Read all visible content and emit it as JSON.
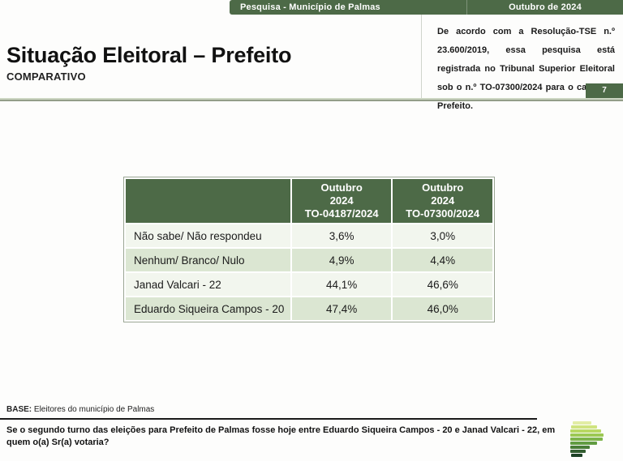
{
  "top_bar": {
    "left_label": "Pesquisa - Município de Palmas",
    "right_label": "Outubro de 2024"
  },
  "header": {
    "title": "Situação Eleitoral – Prefeito",
    "subtitle": "COMPARATIVO"
  },
  "registration_note": "De acordo com a Resolução-TSE n.º 23.600/2019, essa pesquisa está registrada no Tribunal Superior Eleitoral sob o n.º TO-07300/2024 para o cargo de Prefeito.",
  "page_number": "7",
  "table": {
    "header": {
      "col1": "",
      "col2": {
        "line1": "Outubro",
        "line2": "2024",
        "line3": "TO-04187/2024"
      },
      "col3": {
        "line1": "Outubro",
        "line2": "2024",
        "line3": "TO-07300/2024"
      }
    },
    "rows": [
      {
        "label": "Não sabe/ Não respondeu",
        "values": [
          "3,6%",
          "3,0%"
        ]
      },
      {
        "label": "Nenhum/ Branco/ Nulo",
        "values": [
          "4,9%",
          "4,4%"
        ]
      },
      {
        "label": "Janad Valcari - 22",
        "values": [
          "44,1%",
          "46,6%"
        ]
      },
      {
        "label": "Eduardo Siqueira Campos - 20",
        "values": [
          "47,4%",
          "46,0%"
        ]
      }
    ]
  },
  "base_note": {
    "label": "BASE:",
    "text": " Eleitores do município de Palmas"
  },
  "question": "Se o segundo turno das eleições para Prefeito de Palmas fosse hoje entre Eduardo Siqueira Campos - 20 e Janad Valcari - 22, em quem o(a) Sr(a) votaria?",
  "colors": {
    "brand_green": "#4d6a47",
    "row_light": "#f2f6ee",
    "row_green": "#dbe6d2",
    "rule_light": "#ccd6c2",
    "rule_dark": "#939e89",
    "table_border": "#9ba694"
  },
  "logo": {
    "name": "p-bars-logo",
    "bars": [
      {
        "w": 23,
        "indent": 3,
        "color": "#e2eda5"
      },
      {
        "w": 32,
        "indent": 1,
        "color": "#cfe37f"
      },
      {
        "w": 38,
        "indent": 0,
        "color": "#b8d862"
      },
      {
        "w": 41,
        "indent": 0,
        "color": "#9cc853"
      },
      {
        "w": 40,
        "indent": 0,
        "color": "#7eb44b"
      },
      {
        "w": 33,
        "indent": 0,
        "color": "#619c42"
      },
      {
        "w": 24,
        "indent": 0,
        "color": "#497d38"
      },
      {
        "w": 19,
        "indent": 0,
        "color": "#335e31"
      },
      {
        "w": 14,
        "indent": 1,
        "color": "#1e4227"
      }
    ]
  }
}
